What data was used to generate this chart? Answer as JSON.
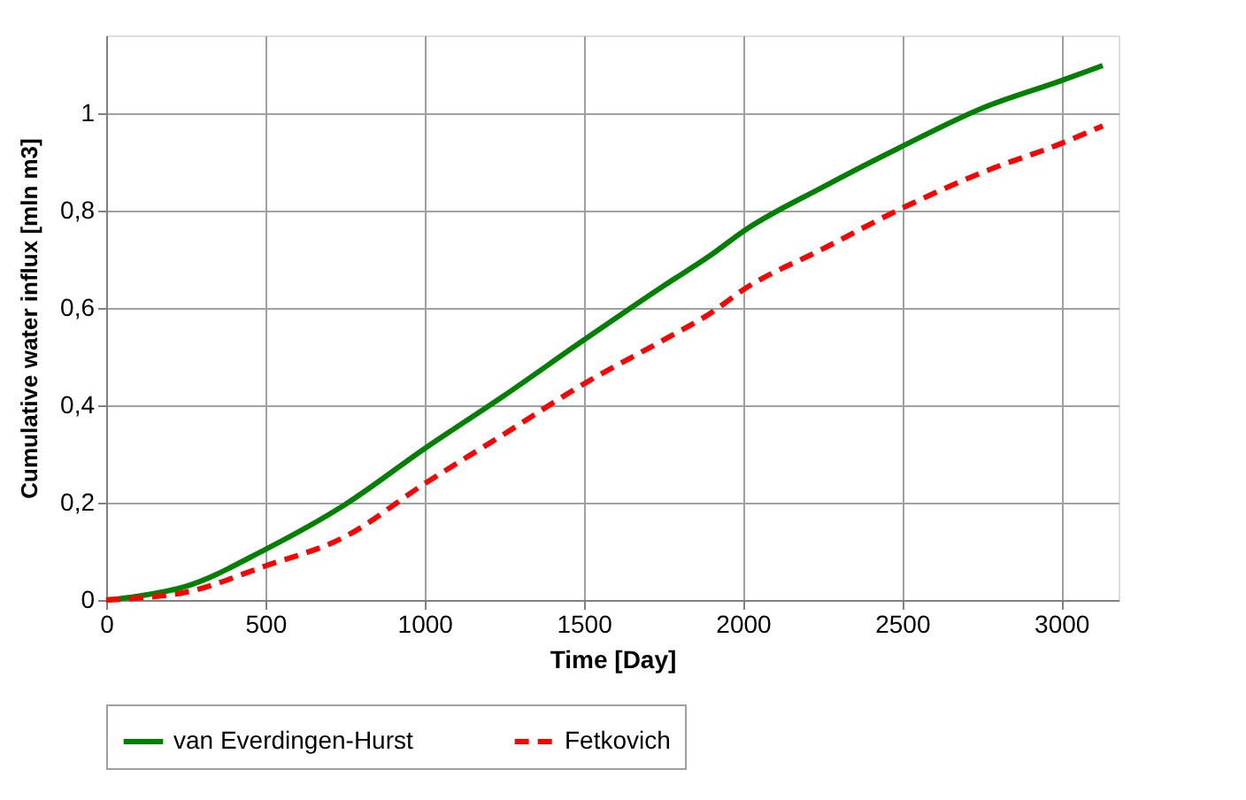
{
  "chart_data": {
    "type": "line",
    "xlabel": "Time [Day]",
    "ylabel": "Cumulative water influx [mln m3]",
    "x": [
      0,
      100,
      250,
      500,
      750,
      1000,
      1250,
      1500,
      1750,
      1900,
      2000,
      2250,
      2500,
      2750,
      3000,
      3130
    ],
    "series": [
      {
        "name": "van Everdingen-Hurst",
        "color": "#008000",
        "line_style": "solid",
        "values": [
          0,
          0.008,
          0.028,
          0.104,
          0.196,
          0.311,
          0.42,
          0.534,
          0.645,
          0.709,
          0.757,
          0.848,
          0.932,
          1.01,
          1.067,
          1.098
        ]
      },
      {
        "name": "Fetkovich",
        "color": "#ff0000",
        "line_style": "dashed",
        "values": [
          0,
          0.004,
          0.016,
          0.07,
          0.13,
          0.239,
          0.341,
          0.444,
          0.534,
          0.59,
          0.637,
          0.721,
          0.805,
          0.878,
          0.938,
          0.974
        ]
      }
    ],
    "xlim": [
      0,
      3180
    ],
    "xticks": [
      0,
      500,
      1000,
      1500,
      2000,
      2500,
      3000
    ],
    "ylim": [
      0,
      1.16
    ],
    "yticks": [
      0,
      {
        "value": 0.2,
        "label": "0,2"
      },
      {
        "value": 0.4,
        "label": "0,4"
      },
      {
        "value": 0.6,
        "label": "0,6"
      },
      {
        "value": 0.8,
        "label": "0,8"
      },
      1
    ],
    "grid": true,
    "legend": "bottom",
    "marker": "none"
  }
}
